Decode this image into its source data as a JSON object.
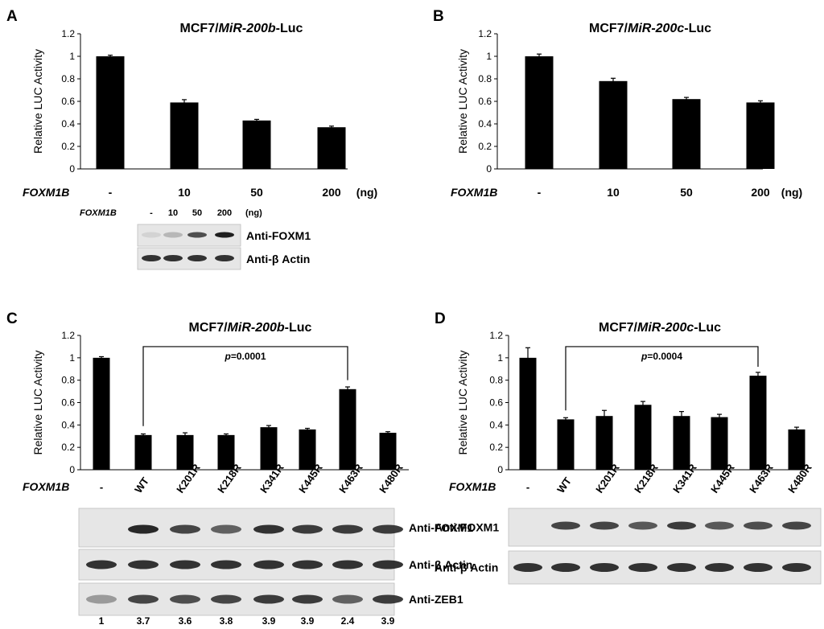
{
  "chart_data": [
    {
      "panel": "A",
      "type": "bar",
      "title": "MCF7/MiR-200b-Luc",
      "title_parts": [
        "MCF7/",
        "MiR-200b",
        "-Luc"
      ],
      "ylabel": "Relative  LUC Activity",
      "ylim": [
        0,
        1.2
      ],
      "yticks": [
        "0",
        "0.2",
        "0.4",
        "0.6",
        "0.8",
        "1",
        "1.2"
      ],
      "xlabel": "FOXM1B",
      "unit": "(ng)",
      "categories": [
        "-",
        "10",
        "50",
        "200"
      ],
      "values": [
        1.0,
        0.59,
        0.43,
        0.37
      ],
      "errors": [
        0.01,
        0.025,
        0.01,
        0.01
      ],
      "bar_color": "#000000",
      "blot": {
        "label": "FOXM1B",
        "unit": "(ng)",
        "lanes": [
          "-",
          "10",
          "50",
          "200"
        ],
        "rows": [
          {
            "label": "Anti-FOXM1",
            "intensity": [
              0.05,
              0.2,
              0.75,
              1.0
            ]
          },
          {
            "label": "Anti-β Actin",
            "intensity": [
              0.9,
              0.9,
              0.9,
              0.9
            ]
          }
        ]
      }
    },
    {
      "panel": "B",
      "type": "bar",
      "title": "MCF7/MiR-200c-Luc",
      "title_parts": [
        "MCF7/",
        "MiR-200c",
        "-Luc"
      ],
      "ylabel": "Relative  LUC Activity",
      "ylim": [
        0,
        1.2
      ],
      "yticks": [
        "0",
        "0.2",
        "0.4",
        "0.6",
        "0.8",
        "1",
        "1.2"
      ],
      "xlabel": "FOXM1B",
      "unit": "(ng)",
      "categories": [
        "-",
        "10",
        "50",
        "200"
      ],
      "values": [
        1.0,
        0.78,
        0.62,
        0.59
      ],
      "errors": [
        0.02,
        0.025,
        0.015,
        0.015
      ],
      "bar_color": "#000000"
    },
    {
      "panel": "C",
      "type": "bar",
      "title": "MCF7/MiR-200b-Luc",
      "title_parts": [
        "MCF7/",
        "MiR-200b",
        "-Luc"
      ],
      "ylabel": "Relative  LUC Activity",
      "ylim": [
        0,
        1.2
      ],
      "yticks": [
        "0",
        "0.2",
        "0.4",
        "0.6",
        "0.8",
        "1",
        "1.2"
      ],
      "xlabel": "FOXM1B",
      "categories": [
        "-",
        "WT",
        "K201R",
        "K218R",
        "K341R",
        "K445R",
        "K463R",
        "K480R"
      ],
      "values": [
        1.0,
        0.31,
        0.31,
        0.31,
        0.38,
        0.36,
        0.72,
        0.33
      ],
      "errors": [
        0.01,
        0.01,
        0.02,
        0.01,
        0.015,
        0.01,
        0.02,
        0.01
      ],
      "bar_color": "#000000",
      "significance": {
        "from": 1,
        "to": 6,
        "label": "p=0.0001",
        "p_italic": "p",
        "p_rest": "=0.0001"
      },
      "blot": {
        "rows": [
          {
            "label": "Anti-FOXM1",
            "intensity": [
              0.0,
              0.95,
              0.8,
              0.65,
              0.9,
              0.85,
              0.85,
              0.85
            ]
          },
          {
            "label": "Anti-β Actin",
            "intensity": [
              0.9,
              0.9,
              0.9,
              0.9,
              0.9,
              0.9,
              0.9,
              0.9
            ]
          },
          {
            "label": "Anti-ZEB1",
            "intensity": [
              0.35,
              0.8,
              0.75,
              0.8,
              0.85,
              0.85,
              0.65,
              0.85
            ]
          }
        ],
        "quantification": [
          "1",
          "3.7",
          "3.6",
          "3.8",
          "3.9",
          "3.9",
          "2.4",
          "3.9"
        ]
      }
    },
    {
      "panel": "D",
      "type": "bar",
      "title": "MCF7/MiR-200c-Luc",
      "title_parts": [
        "MCF7/",
        "MiR-200c",
        "-Luc"
      ],
      "ylabel": "Relative  LUC Activity",
      "ylim": [
        0,
        1.2
      ],
      "yticks": [
        "0",
        "0.2",
        "0.4",
        "0.6",
        "0.8",
        "1",
        "1.2"
      ],
      "xlabel": "FOXM1B",
      "categories": [
        "-",
        "WT",
        "K201R",
        "K218R",
        "K341R",
        "K445R",
        "K463R",
        "K480R"
      ],
      "values": [
        1.0,
        0.45,
        0.48,
        0.58,
        0.48,
        0.47,
        0.84,
        0.36
      ],
      "errors": [
        0.09,
        0.015,
        0.05,
        0.03,
        0.04,
        0.025,
        0.03,
        0.02
      ],
      "bar_color": "#000000",
      "significance": {
        "from": 1,
        "to": 6,
        "label": "p=0.0004",
        "p_italic": "p",
        "p_rest": "=0.0004"
      },
      "blot": {
        "rows": [
          {
            "label": "Anti-FOXM1",
            "intensity": [
              0.0,
              0.8,
              0.8,
              0.7,
              0.85,
              0.7,
              0.75,
              0.8
            ]
          },
          {
            "label": "Anti-β Actin",
            "intensity": [
              0.9,
              0.9,
              0.9,
              0.9,
              0.9,
              0.9,
              0.9,
              0.9
            ]
          }
        ]
      }
    }
  ]
}
